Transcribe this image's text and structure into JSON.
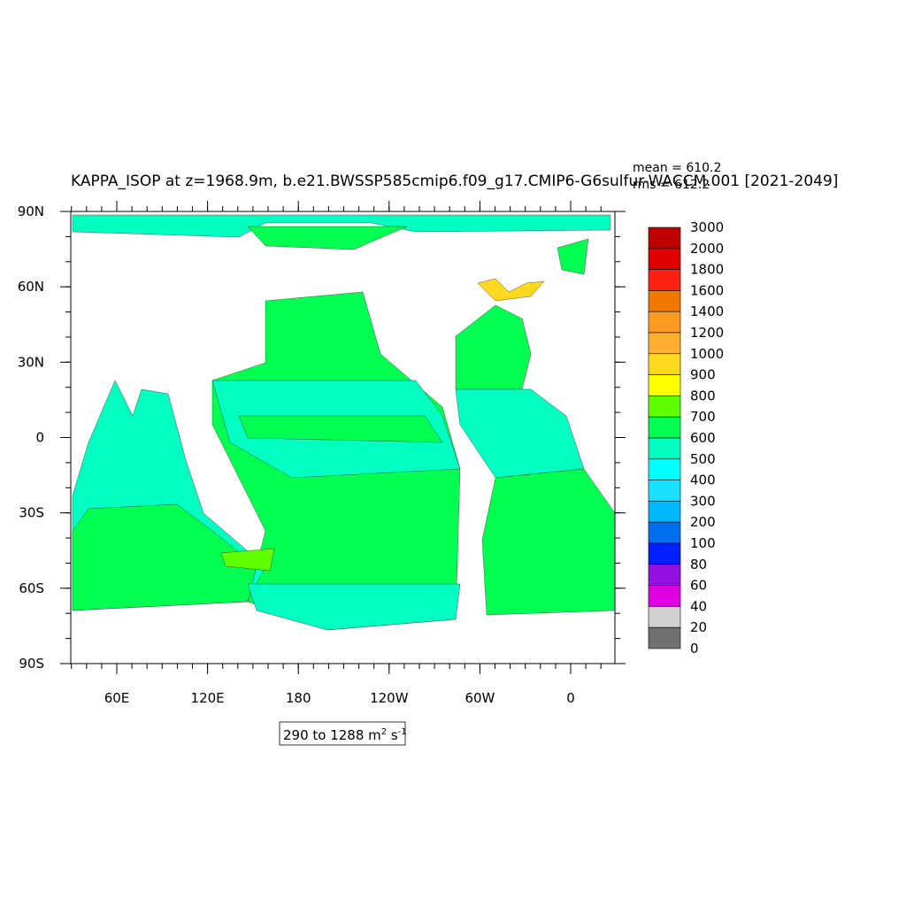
{
  "title": "KAPPA_ISOP at z=1968.9m, b.e21.BWSSP585cmip6.f09_g17.CMIP6-G6sulfur-WACCM.001 [2021-2049]",
  "stats": [
    "mean = 610.2",
    "rms = 612.2"
  ],
  "lat_labels": [
    "90N",
    "60N",
    "30N",
    "0",
    "30S",
    "60S",
    "90S"
  ],
  "lon_labels": [
    "60E",
    "120E",
    "180",
    "120W",
    "60W",
    "0"
  ],
  "colorbar": {
    "levels": [
      3000,
      2000,
      1800,
      1600,
      1400,
      1200,
      1000,
      900,
      800,
      700,
      600,
      500,
      400,
      300,
      200,
      100,
      80,
      60,
      40,
      20,
      0
    ],
    "colors": [
      "#c00000",
      "#e00000",
      "#ff2010",
      "#f07800",
      "#ff9a20",
      "#ffb030",
      "#ffd820",
      "#ffff00",
      "#60ff00",
      "#00ff50",
      "#00ffc0",
      "#00ffff",
      "#18e0ff",
      "#00b8ff",
      "#0070f0",
      "#0020ff",
      "#9010e0",
      "#e000e0",
      "#d0d0d0",
      "#707070"
    ]
  },
  "range_label": {
    "text": "290 to 1288 m",
    "sup1": "2",
    "mid": " s",
    "sup2": "-1"
  }
}
